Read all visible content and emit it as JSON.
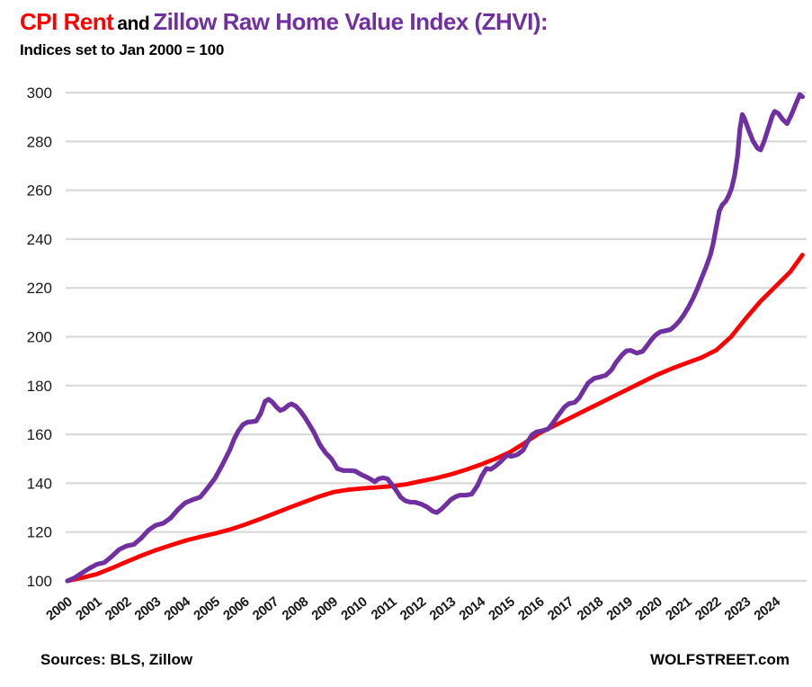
{
  "header": {
    "title_part1": "CPI Rent",
    "title_part2": "and",
    "title_part3": "Zillow Raw Home Value Index (ZHVI):",
    "subtitle": "Indices set to Jan 2000 = 100"
  },
  "footer": {
    "sources": "Sources: BLS, Zillow",
    "brand": "WOLFSTREET.com"
  },
  "colors": {
    "cpi_rent_line": "#ff0000",
    "zhvi_line": "#7030a0",
    "gridline": "#d9d9d9",
    "axis_text": "#1a1a1a"
  },
  "chart_data": {
    "type": "line",
    "title": "CPI Rent and Zillow Raw Home Value Index (ZHVI)",
    "subtitle": "Indices set to Jan 2000 = 100",
    "xlabel": "",
    "ylabel": "",
    "ylim": [
      100,
      300
    ],
    "xlim": [
      2000,
      2025
    ],
    "grid": "horizontal-only",
    "legend_position": "none",
    "y_ticks": [
      100,
      120,
      140,
      160,
      180,
      200,
      220,
      240,
      260,
      280,
      300
    ],
    "x_ticks": [
      2000,
      2001,
      2002,
      2003,
      2004,
      2005,
      2006,
      2007,
      2008,
      2009,
      2010,
      2011,
      2012,
      2013,
      2014,
      2015,
      2016,
      2017,
      2018,
      2019,
      2020,
      2021,
      2022,
      2023,
      2024
    ],
    "series": [
      {
        "name": "CPI Rent",
        "color": "#ff0000",
        "x": [
          2000.0,
          2000.5,
          2001.0,
          2001.5,
          2002.0,
          2002.5,
          2003.0,
          2003.5,
          2004.0,
          2004.5,
          2005.0,
          2005.5,
          2006.0,
          2006.5,
          2007.0,
          2007.5,
          2008.0,
          2008.5,
          2009.0,
          2009.5,
          2010.0,
          2010.5,
          2011.0,
          2011.5,
          2012.0,
          2012.5,
          2013.0,
          2013.5,
          2014.0,
          2014.5,
          2015.0,
          2015.5,
          2016.0,
          2016.5,
          2017.0,
          2017.5,
          2018.0,
          2018.5,
          2019.0,
          2019.5,
          2020.0,
          2020.5,
          2021.0,
          2021.5,
          2022.0,
          2022.5,
          2023.0,
          2023.5,
          2024.0,
          2024.5,
          2024.92
        ],
        "values": [
          100,
          101.3,
          102.8,
          105.2,
          107.8,
          110.3,
          112.6,
          114.6,
          116.5,
          118,
          119.4,
          121,
          123,
          125.2,
          127.5,
          129.9,
          132.2,
          134.4,
          136.3,
          137.3,
          137.9,
          138.3,
          138.8,
          139.6,
          140.9,
          142.1,
          143.6,
          145.5,
          147.6,
          150,
          152.7,
          156.5,
          160.5,
          163.5,
          166.5,
          169.5,
          172.5,
          175.5,
          178.5,
          181.5,
          184.5,
          187,
          189.3,
          191.5,
          194.5,
          200,
          207.5,
          214.5,
          220.5,
          226.5,
          233.5
        ]
      },
      {
        "name": "Zillow Raw Home Value Index (ZHVI)",
        "color": "#7030a0",
        "x": [
          2000.0,
          2000.25,
          2000.5,
          2000.75,
          2001.0,
          2001.25,
          2001.5,
          2001.75,
          2002.0,
          2002.25,
          2002.5,
          2002.75,
          2003.0,
          2003.25,
          2003.5,
          2003.75,
          2004.0,
          2004.25,
          2004.5,
          2004.75,
          2005.0,
          2005.25,
          2005.5,
          2005.65,
          2005.8,
          2005.95,
          2006.1,
          2006.25,
          2006.4,
          2006.55,
          2006.7,
          2006.82,
          2006.95,
          2007.1,
          2007.22,
          2007.35,
          2007.5,
          2007.6,
          2007.75,
          2007.9,
          2008.05,
          2008.2,
          2008.35,
          2008.55,
          2008.75,
          2008.95,
          2009.15,
          2009.35,
          2009.55,
          2009.75,
          2009.95,
          2010.15,
          2010.3,
          2010.42,
          2010.55,
          2010.7,
          2010.85,
          2011.0,
          2011.15,
          2011.3,
          2011.45,
          2011.6,
          2011.8,
          2012.0,
          2012.2,
          2012.38,
          2012.52,
          2012.68,
          2012.85,
          2013.0,
          2013.15,
          2013.3,
          2013.5,
          2013.7,
          2013.9,
          2014.05,
          2014.2,
          2014.35,
          2014.5,
          2014.7,
          2014.9,
          2015.05,
          2015.25,
          2015.45,
          2015.6,
          2015.75,
          2015.9,
          2016.1,
          2016.3,
          2016.45,
          2016.65,
          2016.85,
          2017.0,
          2017.2,
          2017.35,
          2017.5,
          2017.65,
          2017.85,
          2018.05,
          2018.25,
          2018.45,
          2018.6,
          2018.8,
          2018.95,
          2019.1,
          2019.3,
          2019.5,
          2019.65,
          2019.8,
          2019.95,
          2020.1,
          2020.3,
          2020.45,
          2020.6,
          2020.75,
          2020.9,
          2021.05,
          2021.2,
          2021.35,
          2021.5,
          2021.65,
          2021.8,
          2021.9,
          2022.0,
          2022.1,
          2022.2,
          2022.32,
          2022.42,
          2022.52,
          2022.62,
          2022.72,
          2022.8,
          2022.88,
          2022.95,
          2023.1,
          2023.25,
          2023.4,
          2023.5,
          2023.62,
          2023.78,
          2023.9,
          2023.98,
          2024.1,
          2024.25,
          2024.4,
          2024.55,
          2024.7,
          2024.83,
          2024.92
        ],
        "values": [
          100,
          101.3,
          103.3,
          105.2,
          106.8,
          107.5,
          110,
          112.8,
          114.3,
          114.9,
          117.5,
          120.8,
          122.8,
          123.6,
          125.8,
          129.3,
          132,
          133.3,
          134.3,
          138,
          142,
          147.5,
          153.5,
          158,
          161.5,
          164,
          165,
          165.2,
          165.5,
          168.5,
          173.5,
          174.4,
          173.2,
          171,
          169.8,
          170.5,
          172,
          172.5,
          171.5,
          169.5,
          167,
          164,
          161,
          156,
          152.5,
          150,
          146,
          145.2,
          145.2,
          145,
          143.6,
          142.5,
          141.5,
          140.6,
          141.8,
          142.2,
          141.8,
          139.5,
          137,
          134.3,
          132.8,
          132.3,
          132.2,
          131.4,
          130.2,
          128.6,
          128,
          129.4,
          131.4,
          133.3,
          134.4,
          135.1,
          135.1,
          135.5,
          139,
          143,
          146,
          145.7,
          146.9,
          149,
          151.5,
          151,
          151.7,
          153.5,
          157,
          159.8,
          161,
          161.5,
          162.2,
          164.5,
          168,
          171.2,
          172.6,
          173.1,
          175,
          178,
          181,
          182.9,
          183.5,
          184.2,
          186.5,
          189.5,
          192.5,
          194.2,
          194.4,
          193.3,
          194,
          196.3,
          198.8,
          200.8,
          202,
          202.5,
          203,
          204.5,
          206.5,
          209,
          212,
          215.5,
          219.5,
          224,
          228.5,
          233.5,
          238.5,
          245,
          251.5,
          254,
          255.5,
          257.8,
          261,
          266,
          274,
          285,
          291,
          289.5,
          284.5,
          280,
          277.2,
          276.5,
          280,
          286,
          290.5,
          292.3,
          291.5,
          289,
          287.3,
          291,
          295.5,
          299.2,
          298.3
        ]
      }
    ]
  }
}
